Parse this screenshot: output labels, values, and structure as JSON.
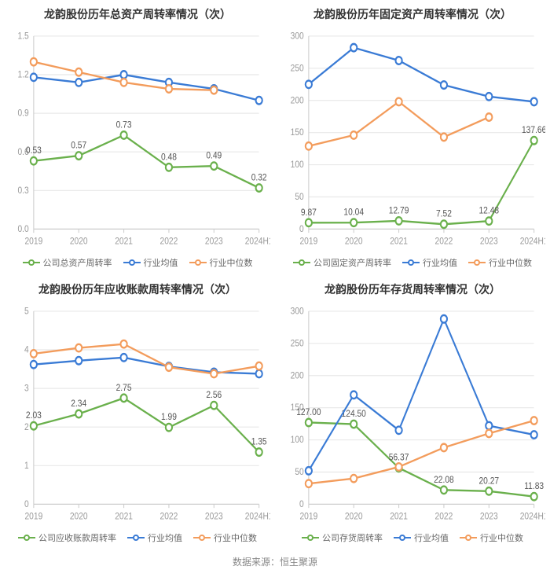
{
  "source_label": "数据来源：恒生聚源",
  "colors": {
    "company": "#6ab04c",
    "industry_avg": "#3a7bd5",
    "industry_median": "#f39c5c",
    "axis": "#cccccc",
    "grid": "#e8e8e8",
    "tick_text": "#999999",
    "title": "#333333",
    "label": "#555555",
    "background": "#ffffff"
  },
  "marker_radius": 4,
  "line_width": 2,
  "label_fontsize": 10,
  "title_fontsize": 14,
  "charts": [
    {
      "title": "龙韵股份历年总资产周转率情况（次）",
      "categories": [
        "2019",
        "2020",
        "2021",
        "2022",
        "2023",
        "2024H1"
      ],
      "ylim": [
        0,
        1.5
      ],
      "ytick_step": 0.3,
      "series": [
        {
          "key": "company",
          "legend": "公司总资产周转率",
          "values": [
            0.53,
            0.57,
            0.73,
            0.48,
            0.49,
            0.32
          ],
          "show_labels": true,
          "labels": [
            "0.53",
            "0.57",
            "0.73",
            "0.48",
            "0.49",
            "0.32"
          ]
        },
        {
          "key": "industry_avg",
          "legend": "行业均值",
          "values": [
            1.18,
            1.14,
            1.2,
            1.14,
            1.09,
            1.0
          ],
          "show_labels": false
        },
        {
          "key": "industry_median",
          "legend": "行业中位数",
          "values": [
            1.3,
            1.22,
            1.14,
            1.09,
            1.08,
            null
          ],
          "show_labels": false
        }
      ]
    },
    {
      "title": "龙韵股份历年固定资产周转率情况（次）",
      "categories": [
        "2019",
        "2020",
        "2021",
        "2022",
        "2023",
        "2024H1"
      ],
      "ylim": [
        0,
        300
      ],
      "ytick_step": 50,
      "series": [
        {
          "key": "company",
          "legend": "公司固定资产周转率",
          "values": [
            9.87,
            10.04,
            12.79,
            7.52,
            12.48,
            137.66
          ],
          "show_labels": true,
          "labels": [
            "9.87",
            "10.04",
            "12.79",
            "7.52",
            "12.48",
            "137.66"
          ]
        },
        {
          "key": "industry_avg",
          "legend": "行业均值",
          "values": [
            225,
            282,
            262,
            224,
            206,
            198
          ],
          "show_labels": false
        },
        {
          "key": "industry_median",
          "legend": "行业中位数",
          "values": [
            129,
            146,
            198,
            143,
            174,
            null
          ],
          "show_labels": false
        }
      ]
    },
    {
      "title": "龙韵股份历年应收账款周转率情况（次）",
      "categories": [
        "2019",
        "2020",
        "2021",
        "2022",
        "2023",
        "2024H1"
      ],
      "ylim": [
        0,
        5
      ],
      "ytick_step": 1,
      "series": [
        {
          "key": "company",
          "legend": "公司应收账款周转率",
          "values": [
            2.03,
            2.34,
            2.75,
            1.99,
            2.56,
            1.35
          ],
          "show_labels": true,
          "labels": [
            "2.03",
            "2.34",
            "2.75",
            "1.99",
            "2.56",
            "1.35"
          ]
        },
        {
          "key": "industry_avg",
          "legend": "行业均值",
          "values": [
            3.62,
            3.72,
            3.8,
            3.57,
            3.42,
            3.38
          ],
          "show_labels": false
        },
        {
          "key": "industry_median",
          "legend": "行业中位数",
          "values": [
            3.9,
            4.05,
            4.15,
            3.55,
            3.38,
            3.58
          ],
          "show_labels": false
        }
      ]
    },
    {
      "title": "龙韵股份历年存货周转率情况（次）",
      "categories": [
        "2019",
        "2020",
        "2021",
        "2022",
        "2023",
        "2024H1"
      ],
      "ylim": [
        0,
        300
      ],
      "ytick_step": 50,
      "series": [
        {
          "key": "company",
          "legend": "公司存货周转率",
          "values": [
            127.0,
            124.5,
            56.37,
            22.08,
            20.27,
            11.83
          ],
          "show_labels": true,
          "labels": [
            "127.00",
            "124.50",
            "56.37",
            "22.08",
            "20.27",
            "11.83"
          ]
        },
        {
          "key": "industry_avg",
          "legend": "行业均值",
          "values": [
            52,
            170,
            115,
            288,
            122,
            108
          ],
          "show_labels": false
        },
        {
          "key": "industry_median",
          "legend": "行业中位数",
          "values": [
            32,
            40,
            58,
            88,
            110,
            130
          ],
          "show_labels": false
        }
      ]
    }
  ]
}
